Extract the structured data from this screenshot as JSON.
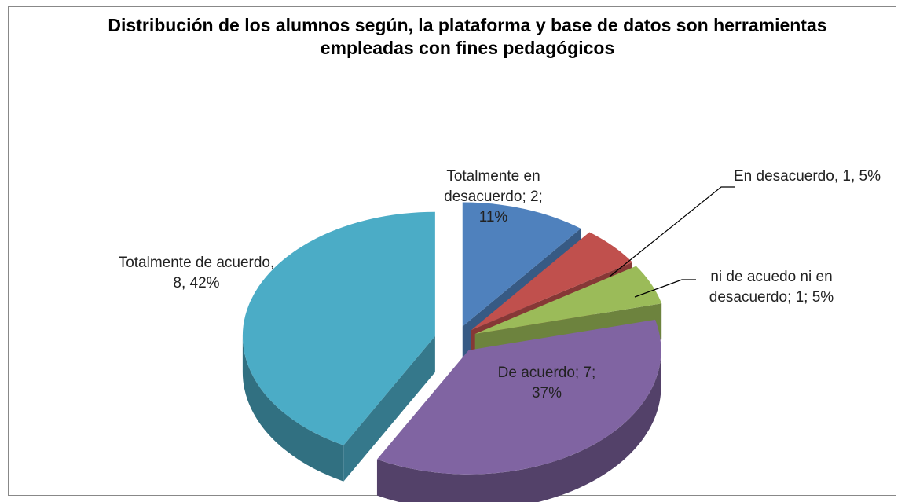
{
  "chart_data": {
    "type": "pie",
    "title": "Distribución de los alumnos según, la plataforma y base de datos son herramientas empleadas con fines pedagógicos",
    "categories": [
      "Totalmente en desacuerdo",
      "En desacuerdo",
      "ni de acuedo ni en desacuerdo",
      "De acuerdo",
      "Totalmente de acuerdo"
    ],
    "values": [
      2,
      1,
      1,
      7,
      8
    ],
    "value_labels": [
      "; 2; 11%",
      ", 1, 5%",
      "; 1; 5%",
      "; 7; 37%",
      ", 8, 42%"
    ],
    "colors": [
      "#4f81bd",
      "#c0504d",
      "#9bbb59",
      "#8064a2",
      "#4bacc6"
    ]
  }
}
